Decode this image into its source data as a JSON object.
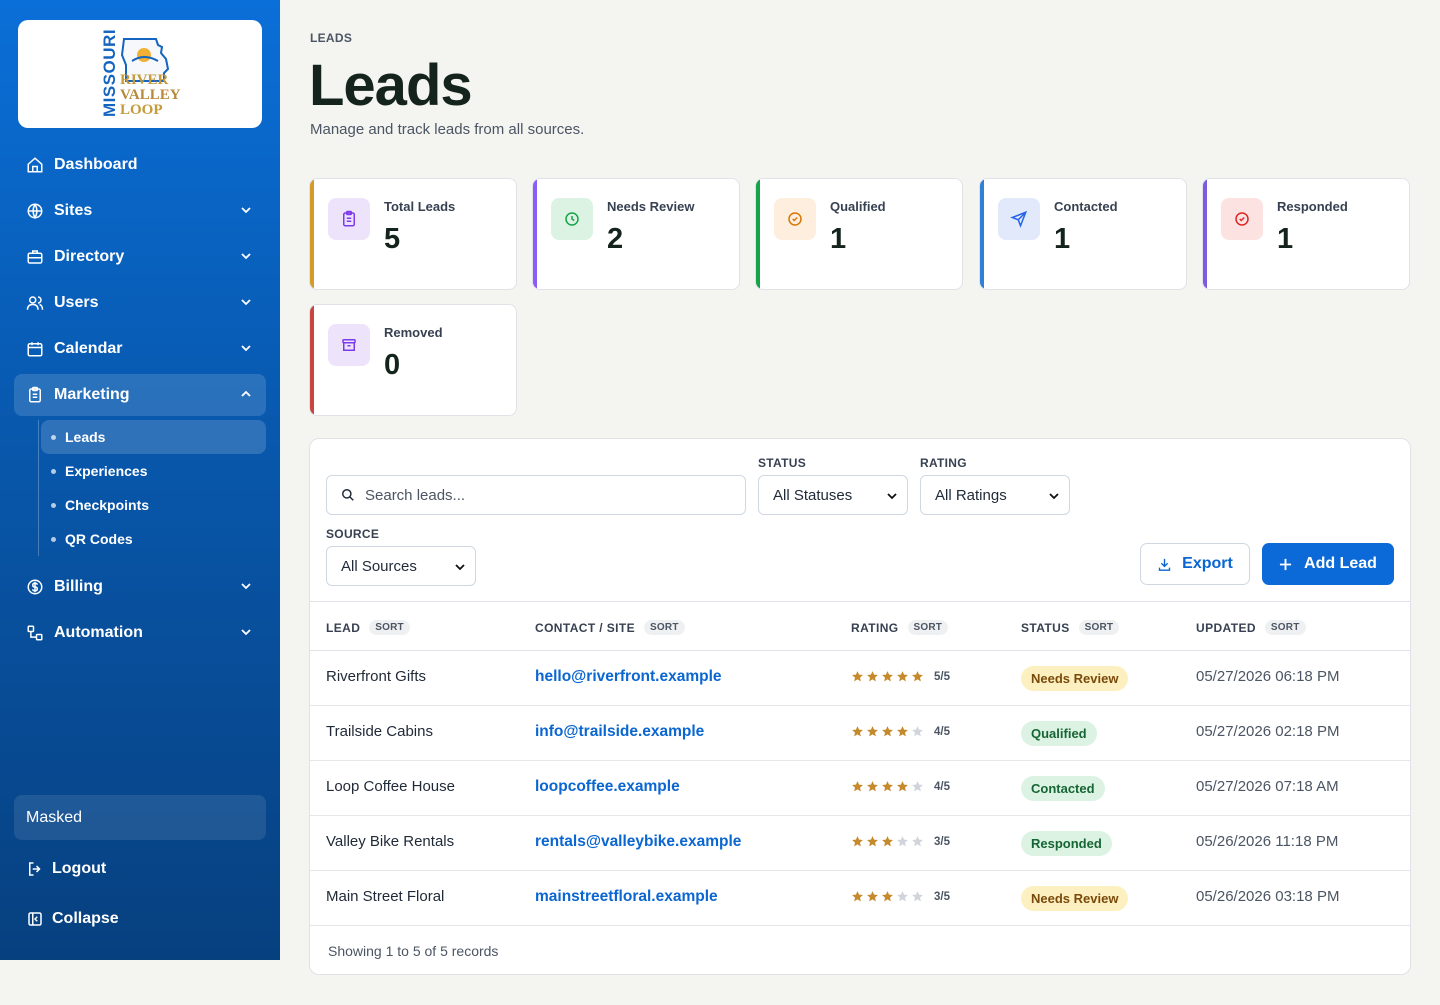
{
  "logo": {
    "vertical": "MISSOURI",
    "lines": [
      "RIVER",
      "VALLEY",
      "LOOP"
    ]
  },
  "nav": [
    {
      "label": "Dashboard",
      "icon": "home-icon",
      "has_chevron": false
    },
    {
      "label": "Sites",
      "icon": "globe-icon",
      "has_chevron": true
    },
    {
      "label": "Directory",
      "icon": "briefcase-icon",
      "has_chevron": true
    },
    {
      "label": "Users",
      "icon": "users-icon",
      "has_chevron": true
    },
    {
      "label": "Calendar",
      "icon": "calendar-icon",
      "has_chevron": true
    },
    {
      "label": "Marketing",
      "icon": "clipboard-icon",
      "has_chevron": true,
      "open": true
    },
    {
      "label": "Billing",
      "icon": "dollar-icon",
      "has_chevron": true
    },
    {
      "label": "Automation",
      "icon": "automation-icon",
      "has_chevron": true
    }
  ],
  "marketing_sub": [
    {
      "label": "Leads",
      "active": true
    },
    {
      "label": "Experiences"
    },
    {
      "label": "Checkpoints"
    },
    {
      "label": "QR Codes"
    }
  ],
  "sidebar_footer": {
    "user": "Masked",
    "logout": "Logout",
    "collapse": "Collapse"
  },
  "page": {
    "breadcrumb": "LEADS",
    "title": "Leads",
    "subtitle": "Manage and track leads from all sources."
  },
  "stats": [
    {
      "label": "Total Leads",
      "value": "5",
      "accent": "#d39b2c",
      "icon": "clipboard-icon",
      "icon_bg": "#ede4fb",
      "icon_color": "#7c3aed"
    },
    {
      "label": "Needs Review",
      "value": "2",
      "accent": "#8b5cf6",
      "icon": "clock-icon",
      "icon_bg": "#dcf3e4",
      "icon_color": "#16a34a"
    },
    {
      "label": "Qualified",
      "value": "1",
      "accent": "#16a34a",
      "icon": "check-circle-icon",
      "icon_bg": "#fdeedd",
      "icon_color": "#d97706"
    },
    {
      "label": "Contacted",
      "value": "1",
      "accent": "#2f80d8",
      "icon": "send-icon",
      "icon_bg": "#e1e9fb",
      "icon_color": "#2563eb"
    },
    {
      "label": "Responded",
      "value": "1",
      "accent": "#7c5be0",
      "icon": "check-circle-icon",
      "icon_bg": "#fde2e2",
      "icon_color": "#dc2626"
    },
    {
      "label": "Removed",
      "value": "0",
      "accent": "#c8463f",
      "icon": "archive-icon",
      "icon_bg": "#ede4fb",
      "icon_color": "#7c3aed"
    }
  ],
  "filters": {
    "search_placeholder": "Search leads...",
    "status_label": "STATUS",
    "status_value": "All Statuses",
    "rating_label": "RATING",
    "rating_value": "All Ratings",
    "source_label": "SOURCE",
    "source_value": "All Sources"
  },
  "actions": {
    "export": "Export",
    "add": "Add Lead"
  },
  "table": {
    "sort_label": "SORT",
    "columns": [
      "LEAD",
      "CONTACT / SITE",
      "RATING",
      "STATUS",
      "UPDATED"
    ],
    "rows": [
      {
        "lead": "Riverfront Gifts",
        "contact": "hello@riverfront.example",
        "rating": 5,
        "rating_text": "5/5",
        "status": "Needs Review",
        "updated": "05/27/2026 06:18 PM"
      },
      {
        "lead": "Trailside Cabins",
        "contact": "info@trailside.example",
        "rating": 4,
        "rating_text": "4/5",
        "status": "Qualified",
        "updated": "05/27/2026 02:18 PM"
      },
      {
        "lead": "Loop Coffee House",
        "contact": "loopcoffee.example",
        "rating": 4,
        "rating_text": "4/5",
        "status": "Contacted",
        "updated": "05/27/2026 07:18 AM"
      },
      {
        "lead": "Valley Bike Rentals",
        "contact": "rentals@valleybike.example",
        "rating": 3,
        "rating_text": "3/5",
        "status": "Responded",
        "updated": "05/26/2026 11:18 PM"
      },
      {
        "lead": "Main Street Floral",
        "contact": "mainstreetfloral.example",
        "rating": 3,
        "rating_text": "3/5",
        "status": "Needs Review",
        "updated": "05/26/2026 03:18 PM"
      }
    ],
    "footer": "Showing 1 to 5 of 5 records"
  },
  "colors": {
    "primary": "#0b6ad8",
    "star_filled": "#c58a2b",
    "star_empty": "#d1d5db",
    "status": {
      "Needs Review": {
        "bg": "#fdf0c0",
        "fg": "#7a4a0a"
      },
      "Qualified": {
        "bg": "#dcf3e4",
        "fg": "#166534"
      },
      "Contacted": {
        "bg": "#dcf3e4",
        "fg": "#166534"
      },
      "Responded": {
        "bg": "#dcf3e4",
        "fg": "#166534"
      }
    }
  }
}
